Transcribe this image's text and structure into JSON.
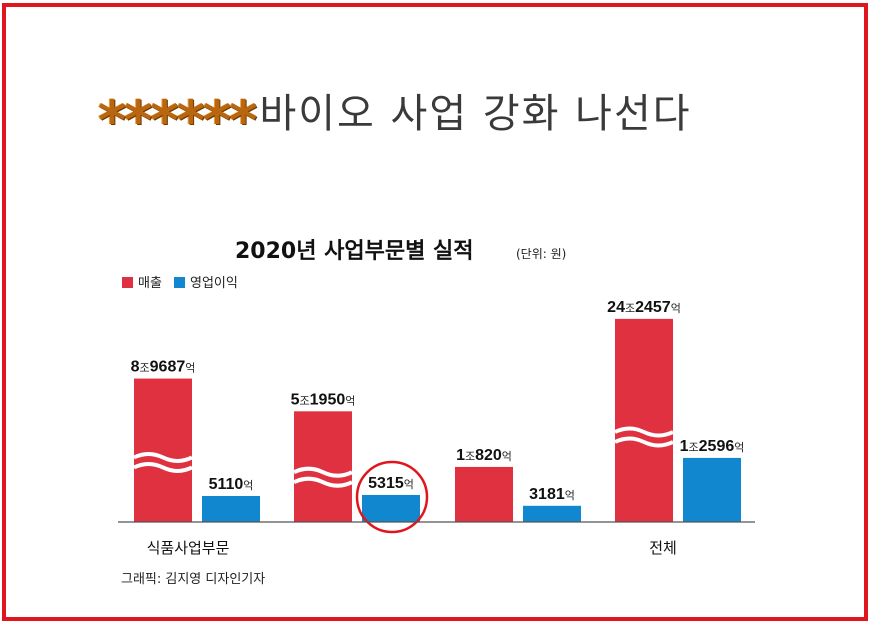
{
  "headline": {
    "stars": "******",
    "text": "바이오 사업 강화 나선다"
  },
  "chart_data": {
    "type": "bar",
    "title": "2020년 사업부문별 실적",
    "unit": "(단위: 원)",
    "categories": [
      "식품사업부문",
      "",
      "",
      "전체"
    ],
    "series": [
      {
        "name": "매출",
        "color": "#e03141",
        "labels": [
          "8조9687억",
          "5조1950억",
          "1조820억",
          "24조2457억"
        ],
        "values": [
          89687,
          51950,
          10820,
          242457
        ]
      },
      {
        "name": "영업이익",
        "color": "#1187cf",
        "labels": [
          "5110억",
          "5315억",
          "3181억",
          "1조2596억"
        ],
        "values": [
          5110,
          5315,
          3181,
          12596
        ]
      }
    ],
    "axis_broken": true,
    "highlight": {
      "series": 1,
      "index": 1,
      "color": "#e0161e"
    },
    "legend_position": "top-left",
    "grid": false
  },
  "credit": "그래픽: 김지영 디자인기자"
}
